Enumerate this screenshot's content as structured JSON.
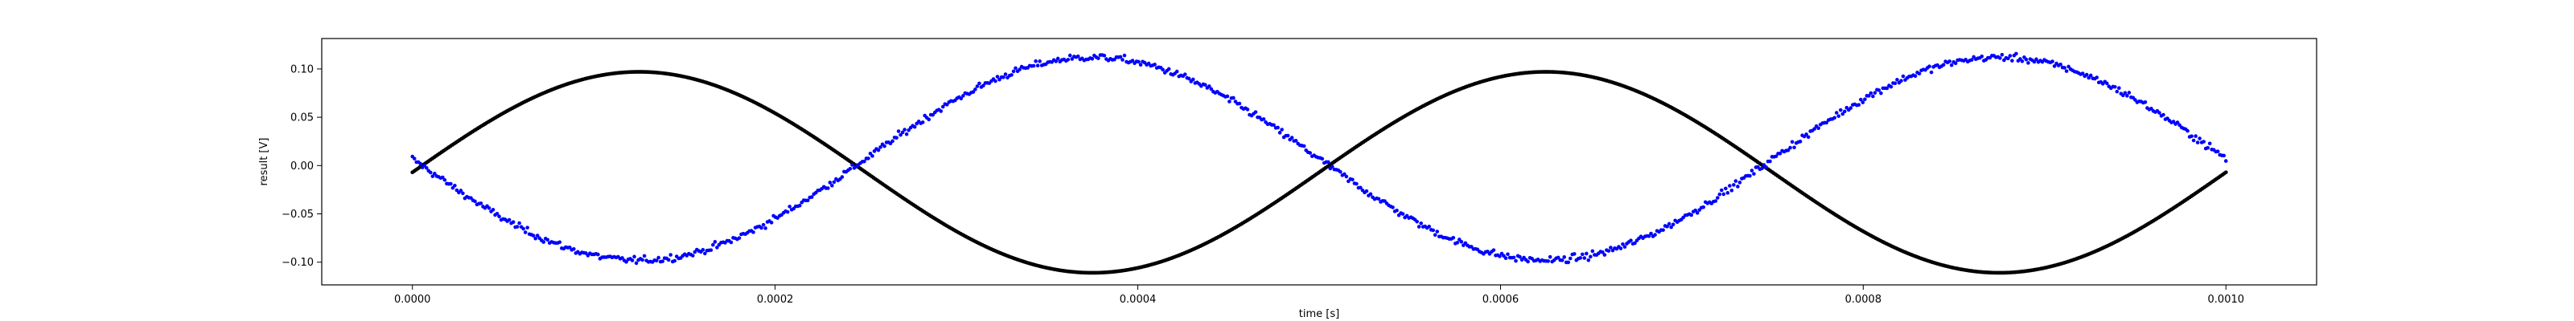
{
  "chart_data": {
    "type": "scatter",
    "title": "",
    "xlabel": "time [s]",
    "ylabel": "result [V]",
    "xlim": [
      -5e-05,
      0.00105
    ],
    "ylim": [
      -0.1235,
      0.1315
    ],
    "x_ticks": [
      0.0,
      0.0002,
      0.0004,
      0.0006,
      0.0008,
      0.001
    ],
    "x_tick_labels": [
      "0.0000",
      "0.0002",
      "0.0004",
      "0.0006",
      "0.0008",
      "0.0010"
    ],
    "y_ticks": [
      -0.1,
      -0.05,
      0.0,
      0.05,
      0.1
    ],
    "y_tick_labels": [
      "−0.10",
      "−0.05",
      "0.00",
      "0.05",
      "0.10"
    ],
    "grid": false,
    "legend": "none",
    "series": [
      {
        "color": "#000000",
        "marker": "dot",
        "frequency_hz": 2000,
        "points_count": 1000,
        "description_values": {
          "x_start": 0.0,
          "x_end": 0.001,
          "y_start": -0.007,
          "y_peak": 0.097,
          "y_trough": -0.111,
          "x_peaks": [
            0.000125,
            0.000625
          ],
          "x_troughs": [
            0.000375,
            0.000875
          ]
        }
      },
      {
        "color": "#0000ff",
        "marker": "dot",
        "frequency_hz": 2000,
        "points_count": 900,
        "noise": 0.003,
        "description_values": {
          "x_start": 0.0,
          "x_end": 0.001,
          "y_start": 0.0,
          "y_peak": 0.112,
          "y_trough": -0.098,
          "x_peaks": [
            0.000375,
            0.000875
          ],
          "x_troughs": [
            0.000125,
            0.000625
          ]
        }
      }
    ]
  }
}
